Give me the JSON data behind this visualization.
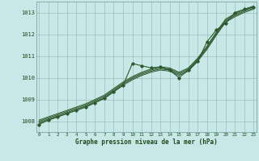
{
  "title": "Graphe pression niveau de la mer (hPa)",
  "hours": [
    0,
    1,
    2,
    3,
    4,
    5,
    6,
    7,
    8,
    9,
    10,
    11,
    12,
    13,
    14,
    15,
    16,
    17,
    18,
    19,
    20,
    21,
    22,
    23
  ],
  "ylim": [
    1007.5,
    1013.5
  ],
  "yticks": [
    1008,
    1009,
    1010,
    1011,
    1012,
    1013
  ],
  "bg_color": "#c8e8e8",
  "grid_color": "#9bbdbd",
  "line_color": "#2d5a2d",
  "smooth_series": [
    [
      1007.9,
      1008.05,
      1008.2,
      1008.35,
      1008.5,
      1008.65,
      1008.85,
      1009.05,
      1009.35,
      1009.65,
      1009.9,
      1010.1,
      1010.25,
      1010.35,
      1010.3,
      1010.1,
      1010.3,
      1010.75,
      1011.3,
      1011.95,
      1012.55,
      1012.8,
      1013.0,
      1013.15
    ],
    [
      1007.95,
      1008.1,
      1008.25,
      1008.4,
      1008.55,
      1008.7,
      1008.9,
      1009.1,
      1009.4,
      1009.7,
      1009.95,
      1010.15,
      1010.3,
      1010.4,
      1010.35,
      1010.15,
      1010.35,
      1010.8,
      1011.35,
      1012.0,
      1012.6,
      1012.85,
      1013.05,
      1013.2
    ],
    [
      1008.0,
      1008.15,
      1008.3,
      1008.45,
      1008.6,
      1008.75,
      1008.95,
      1009.15,
      1009.45,
      1009.75,
      1010.0,
      1010.2,
      1010.35,
      1010.45,
      1010.4,
      1010.2,
      1010.4,
      1010.85,
      1011.4,
      1012.05,
      1012.65,
      1012.9,
      1013.1,
      1013.25
    ],
    [
      1008.05,
      1008.2,
      1008.35,
      1008.5,
      1008.65,
      1008.8,
      1009.0,
      1009.2,
      1009.5,
      1009.8,
      1010.05,
      1010.25,
      1010.4,
      1010.5,
      1010.45,
      1010.25,
      1010.45,
      1010.9,
      1011.45,
      1012.1,
      1012.7,
      1012.95,
      1013.15,
      1013.3
    ]
  ],
  "main_series": [
    1007.85,
    1008.05,
    1008.2,
    1008.35,
    1008.5,
    1008.65,
    1008.85,
    1009.05,
    1009.35,
    1009.65,
    1010.65,
    1010.55,
    1010.45,
    1010.5,
    1010.35,
    1010.0,
    1010.35,
    1010.75,
    1011.65,
    1012.2,
    1012.5,
    1013.0,
    1013.15,
    1013.25
  ]
}
